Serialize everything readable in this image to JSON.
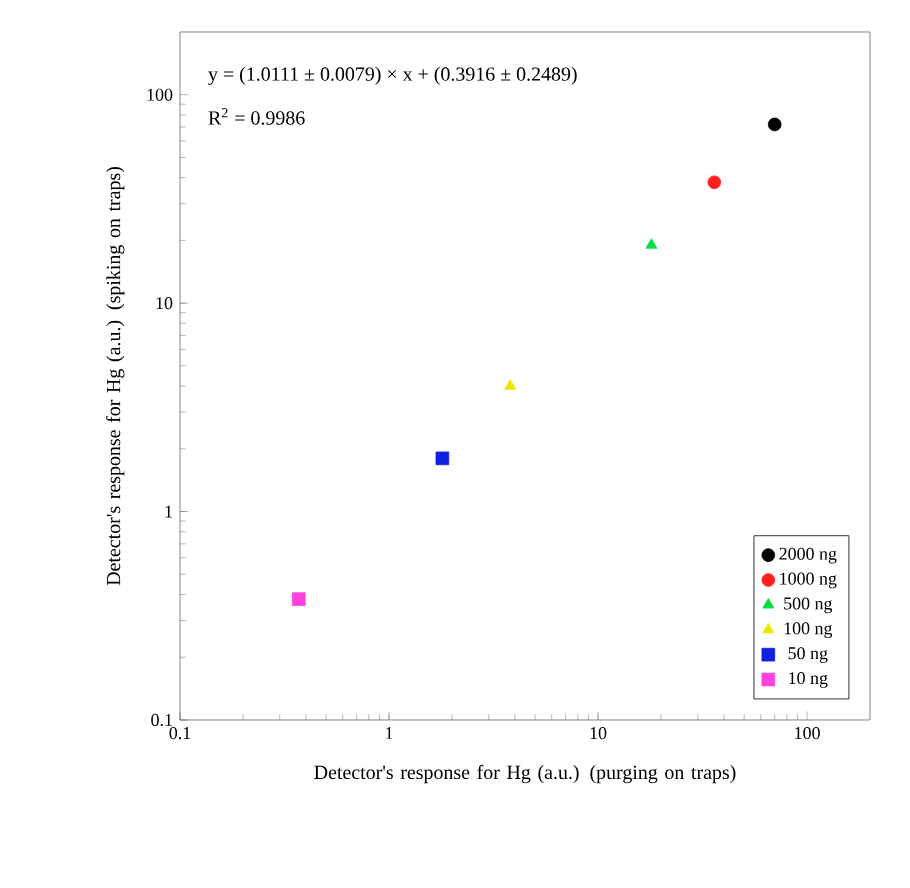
{
  "chart_data": {
    "type": "scatter",
    "xlabel": "Detector's response for Hg (a.u.) (purging on traps)",
    "ylabel": "Detector's response for Hg (a.u.) (spiking on traps)",
    "annotations": [
      "y = (1.0111 ± 0.0079) × x + (0.3916 ± 0.2489)",
      "R$^{2}$ = 0.9986"
    ],
    "log": "xy",
    "xlim": [
      0.1,
      200
    ],
    "ylim": [
      0.1,
      200
    ],
    "xticks": [
      0.1,
      1,
      10,
      100
    ],
    "yticks": [
      0.1,
      1,
      10,
      100
    ],
    "grid": false,
    "legend": "bottom right",
    "series": [
      {
        "name": "2000 ng",
        "color": "#000000",
        "marker": "circle",
        "x": [
          70
        ],
        "values": [
          72
        ]
      },
      {
        "name": "1000 ng",
        "color": "#ff2020",
        "marker": "circle",
        "x": [
          36
        ],
        "values": [
          38
        ]
      },
      {
        "name": "500 ng",
        "color": "#00e040",
        "marker": "triangle",
        "x": [
          18
        ],
        "values": [
          19
        ]
      },
      {
        "name": "100 ng",
        "color": "#e8e800",
        "marker": "triangle",
        "x": [
          3.8
        ],
        "values": [
          4.0
        ]
      },
      {
        "name": "50 ng",
        "color": "#1020e0",
        "marker": "square",
        "x": [
          1.8
        ],
        "values": [
          1.8
        ]
      },
      {
        "name": "10 ng",
        "color": "#ff40e0",
        "marker": "square",
        "x": [
          0.37
        ],
        "values": [
          0.38
        ]
      }
    ]
  }
}
